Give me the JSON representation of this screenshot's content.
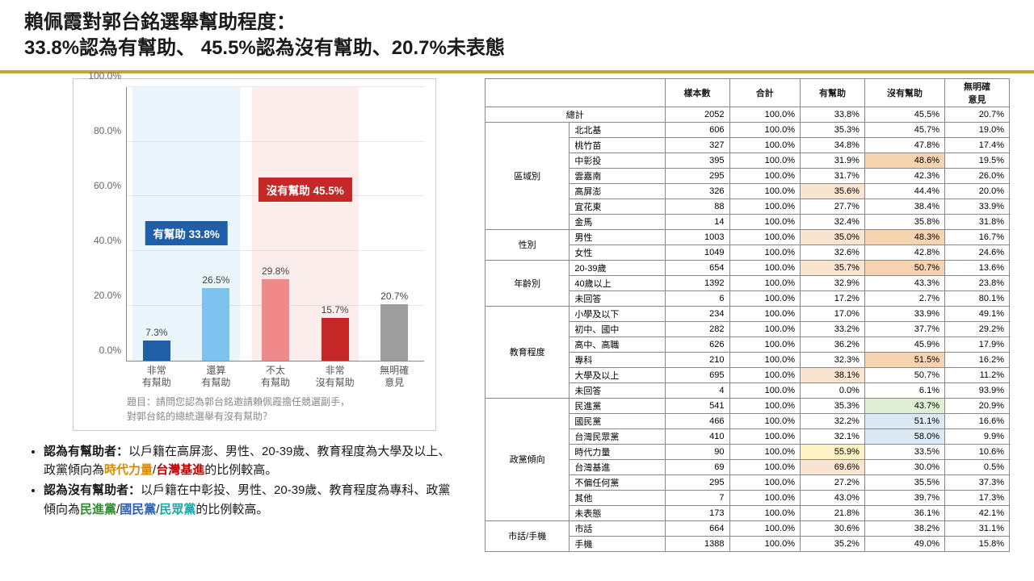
{
  "title": {
    "line1": "賴佩霞對郭台銘選舉幫助程度：",
    "line2": "33.8%認為有幫助、 45.5%認為沒有幫助、20.7%未表態"
  },
  "gold_rule_color": "#c7a23f",
  "chart": {
    "ylim": [
      0,
      100
    ],
    "ytick_step": 20,
    "ytick_labels": [
      "0.0%",
      "20.0%",
      "40.0%",
      "60.0%",
      "80.0%",
      "100.0%"
    ],
    "grid_color": "#e8e8e8",
    "axis_color": "#888888",
    "groups": [
      {
        "overlay_color": "#a8d2f0",
        "badge_text": "有幫助 33.8%",
        "badge_color": "#1f5fa8",
        "badge_top_pct": 49,
        "bars": [
          {
            "label": "7.3%",
            "value": 7.3,
            "color": "#1f5fa8",
            "x_label": "非常\n有幫助"
          },
          {
            "label": "26.5%",
            "value": 26.5,
            "color": "#7dc3ef",
            "x_label": "還算\n有幫助"
          }
        ]
      },
      {
        "overlay_color": "#f2b8b8",
        "badge_text": "沒有幫助 45.5%",
        "badge_color": "#c62828",
        "badge_top_pct": 33,
        "bars": [
          {
            "label": "29.8%",
            "value": 29.8,
            "color": "#f08a8a",
            "x_label": "不太\n有幫助"
          },
          {
            "label": "15.7%",
            "value": 15.7,
            "color": "#c62828",
            "x_label": "非常\n沒有幫助"
          }
        ]
      },
      {
        "overlay_color": null,
        "bars": [
          {
            "label": "20.7%",
            "value": 20.7,
            "color": "#9e9e9e",
            "x_label": "無明確\n意見"
          }
        ]
      }
    ],
    "question_l1": "題目：請問您認為郭台銘邀請賴佩霞擔任競選副手，",
    "question_l2": "對郭台銘的總統選舉有沒有幫助？"
  },
  "bullets": {
    "b1_lead": "認為有幫助者：",
    "b1_body1": "以戶籍在高屏澎、男性、20-39歲、教育程度為大學及以上、政黨傾向為",
    "b1_hl1": "時代力量",
    "b1_hl2": "台灣基進",
    "b1_tail": "的比例較高。",
    "b2_lead": "認為沒有幫助者：",
    "b2_body1": "以戶籍在中彰投、男性、20-39歲、教育程度為專科、政黨傾向為",
    "b2_hl1": "民進黨",
    "b2_hl2": "國民黨",
    "b2_hl3": "民眾黨",
    "b2_tail": "的比例較高。"
  },
  "table": {
    "headers": [
      "",
      "",
      "樣本數",
      "合計",
      "有幫助",
      "沒有幫助",
      "無明確\n意見"
    ],
    "total_label": "總計",
    "total": [
      "2052",
      "100.0%",
      "33.8%",
      "45.5%",
      "20.7%"
    ],
    "hl_help": "#f9e4d0",
    "hl_no": "#dbe9f5",
    "hl_yellow": "#fdf2c4",
    "hl_green": "#e0f0d6",
    "hl_orange": "#f7d4b0",
    "groups": [
      {
        "name": "區域別",
        "rows": [
          {
            "label": "北北基",
            "cells": [
              "606",
              "100.0%",
              "35.3%",
              "45.7%",
              "19.0%"
            ]
          },
          {
            "label": "桃竹苗",
            "cells": [
              "327",
              "100.0%",
              "34.8%",
              "47.8%",
              "17.4%"
            ]
          },
          {
            "label": "中彰投",
            "cells": [
              "395",
              "100.0%",
              "31.9%",
              "48.6%",
              "19.5%"
            ],
            "hl": {
              "3": "hl_orange"
            }
          },
          {
            "label": "雲嘉南",
            "cells": [
              "295",
              "100.0%",
              "31.7%",
              "42.3%",
              "26.0%"
            ]
          },
          {
            "label": "高屏澎",
            "cells": [
              "326",
              "100.0%",
              "35.6%",
              "44.4%",
              "20.0%"
            ],
            "hl": {
              "2": "hl_help"
            }
          },
          {
            "label": "宜花東",
            "cells": [
              "88",
              "100.0%",
              "27.7%",
              "38.4%",
              "33.9%"
            ]
          },
          {
            "label": "金馬",
            "cells": [
              "14",
              "100.0%",
              "32.4%",
              "35.8%",
              "31.8%"
            ]
          }
        ]
      },
      {
        "name": "性別",
        "rows": [
          {
            "label": "男性",
            "cells": [
              "1003",
              "100.0%",
              "35.0%",
              "48.3%",
              "16.7%"
            ],
            "hl": {
              "2": "hl_help",
              "3": "hl_orange"
            }
          },
          {
            "label": "女性",
            "cells": [
              "1049",
              "100.0%",
              "32.6%",
              "42.8%",
              "24.6%"
            ]
          }
        ]
      },
      {
        "name": "年齡別",
        "rows": [
          {
            "label": "20-39歲",
            "cells": [
              "654",
              "100.0%",
              "35.7%",
              "50.7%",
              "13.6%"
            ],
            "hl": {
              "2": "hl_help",
              "3": "hl_orange"
            }
          },
          {
            "label": "40歲以上",
            "cells": [
              "1392",
              "100.0%",
              "32.9%",
              "43.3%",
              "23.8%"
            ]
          },
          {
            "label": "未回答",
            "cells": [
              "6",
              "100.0%",
              "17.2%",
              "2.7%",
              "80.1%"
            ]
          }
        ]
      },
      {
        "name": "教育程度",
        "rows": [
          {
            "label": "小學及以下",
            "cells": [
              "234",
              "100.0%",
              "17.0%",
              "33.9%",
              "49.1%"
            ]
          },
          {
            "label": "初中、國中",
            "cells": [
              "282",
              "100.0%",
              "33.2%",
              "37.7%",
              "29.2%"
            ]
          },
          {
            "label": "高中、高職",
            "cells": [
              "626",
              "100.0%",
              "36.2%",
              "45.9%",
              "17.9%"
            ]
          },
          {
            "label": "專科",
            "cells": [
              "210",
              "100.0%",
              "32.3%",
              "51.5%",
              "16.2%"
            ],
            "hl": {
              "3": "hl_orange"
            }
          },
          {
            "label": "大學及以上",
            "cells": [
              "695",
              "100.0%",
              "38.1%",
              "50.7%",
              "11.2%"
            ],
            "hl": {
              "2": "hl_help"
            }
          },
          {
            "label": "未回答",
            "cells": [
              "4",
              "100.0%",
              "0.0%",
              "6.1%",
              "93.9%"
            ]
          }
        ]
      },
      {
        "name": "政黨傾向",
        "rows": [
          {
            "label": "民進黨",
            "cells": [
              "541",
              "100.0%",
              "35.3%",
              "43.7%",
              "20.9%"
            ],
            "hl": {
              "3": "hl_green"
            }
          },
          {
            "label": "國民黨",
            "cells": [
              "466",
              "100.0%",
              "32.2%",
              "51.1%",
              "16.6%"
            ],
            "hl": {
              "3": "hl_no"
            }
          },
          {
            "label": "台灣民眾黨",
            "cells": [
              "410",
              "100.0%",
              "32.1%",
              "58.0%",
              "9.9%"
            ],
            "hl": {
              "3": "hl_no"
            }
          },
          {
            "label": "時代力量",
            "cells": [
              "90",
              "100.0%",
              "55.9%",
              "33.5%",
              "10.6%"
            ],
            "hl": {
              "2": "hl_yellow"
            }
          },
          {
            "label": "台灣基進",
            "cells": [
              "69",
              "100.0%",
              "69.6%",
              "30.0%",
              "0.5%"
            ],
            "hl": {
              "2": "hl_help"
            }
          },
          {
            "label": "不偏任何黨",
            "cells": [
              "295",
              "100.0%",
              "27.2%",
              "35.5%",
              "37.3%"
            ]
          },
          {
            "label": "其他",
            "cells": [
              "7",
              "100.0%",
              "43.0%",
              "39.7%",
              "17.3%"
            ]
          },
          {
            "label": "未表態",
            "cells": [
              "173",
              "100.0%",
              "21.8%",
              "36.1%",
              "42.1%"
            ]
          }
        ]
      },
      {
        "name": "市話/手機",
        "rows": [
          {
            "label": "市話",
            "cells": [
              "664",
              "100.0%",
              "30.6%",
              "38.2%",
              "31.1%"
            ]
          },
          {
            "label": "手機",
            "cells": [
              "1388",
              "100.0%",
              "35.2%",
              "49.0%",
              "15.8%"
            ]
          }
        ]
      }
    ]
  }
}
